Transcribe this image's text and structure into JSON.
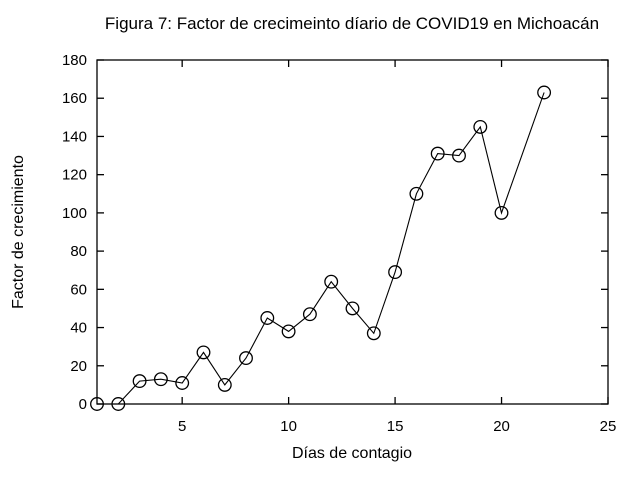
{
  "page": {
    "background": "#ffffff",
    "foreground": "#000000"
  },
  "chart_data": {
    "type": "line",
    "title": "Figura 7: Factor de crecimeinto díario de COVID19 en Michoacán",
    "xlabel": "Días de contagio",
    "ylabel": "Factor de crecimiento",
    "xlim": [
      1,
      25
    ],
    "ylim": [
      0,
      180
    ],
    "x_ticks": [
      5,
      10,
      15,
      20,
      25
    ],
    "y_ticks": [
      0,
      20,
      40,
      60,
      80,
      100,
      120,
      140,
      160,
      180
    ],
    "grid": false,
    "legend": false,
    "marker": "open-circle",
    "line_color": "#000000",
    "marker_color": "#000000",
    "background": "#ffffff",
    "x": [
      1,
      2,
      3,
      4,
      5,
      6,
      7,
      8,
      9,
      10,
      11,
      12,
      13,
      14,
      15,
      16,
      17,
      18,
      19,
      20,
      22
    ],
    "y": [
      0,
      0,
      12,
      13,
      11,
      27,
      10,
      24,
      45,
      38,
      47,
      64,
      50,
      37,
      69,
      110,
      131,
      130,
      145,
      100,
      163
    ]
  }
}
